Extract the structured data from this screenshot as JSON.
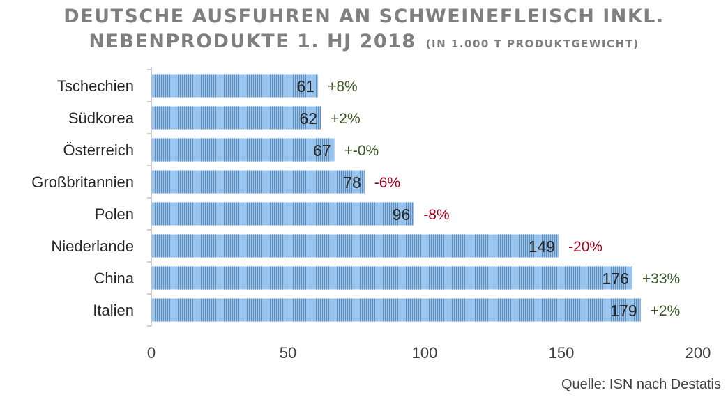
{
  "title_line1": "DEUTSCHE AUSFUHREN AN SCHWEINEFLEISCH INKL.",
  "title_line2": "NEBENPRODUKTE 1. HJ 2018",
  "title_unit": "(IN 1.000 T PRODUKTGEWICHT)",
  "source": "Quelle: ISN nach Destatis",
  "colors": {
    "bar_fill": "#9dc3e6",
    "bar_stripe": "#5b8fc7",
    "positive": "#385723",
    "negative": "#a50021",
    "text": "#404040"
  },
  "chart_data": {
    "type": "bar",
    "orientation": "horizontal",
    "categories": [
      "Tschechien",
      "Südkorea",
      "Österreich",
      "Großbritannien",
      "Polen",
      "Niederlande",
      "China",
      "Italien"
    ],
    "values": [
      61,
      62,
      67,
      78,
      96,
      149,
      176,
      179
    ],
    "changes": [
      "+8%",
      "+2%",
      "+-0%",
      "-6%",
      "-8%",
      "-20%",
      "+33%",
      "+2%"
    ],
    "change_sign": [
      "positive",
      "positive",
      "positive",
      "negative",
      "negative",
      "negative",
      "positive",
      "positive"
    ],
    "xlim": [
      0,
      200
    ],
    "xticks": [
      0,
      50,
      100,
      150,
      200
    ],
    "grid": false,
    "legend": "none"
  }
}
